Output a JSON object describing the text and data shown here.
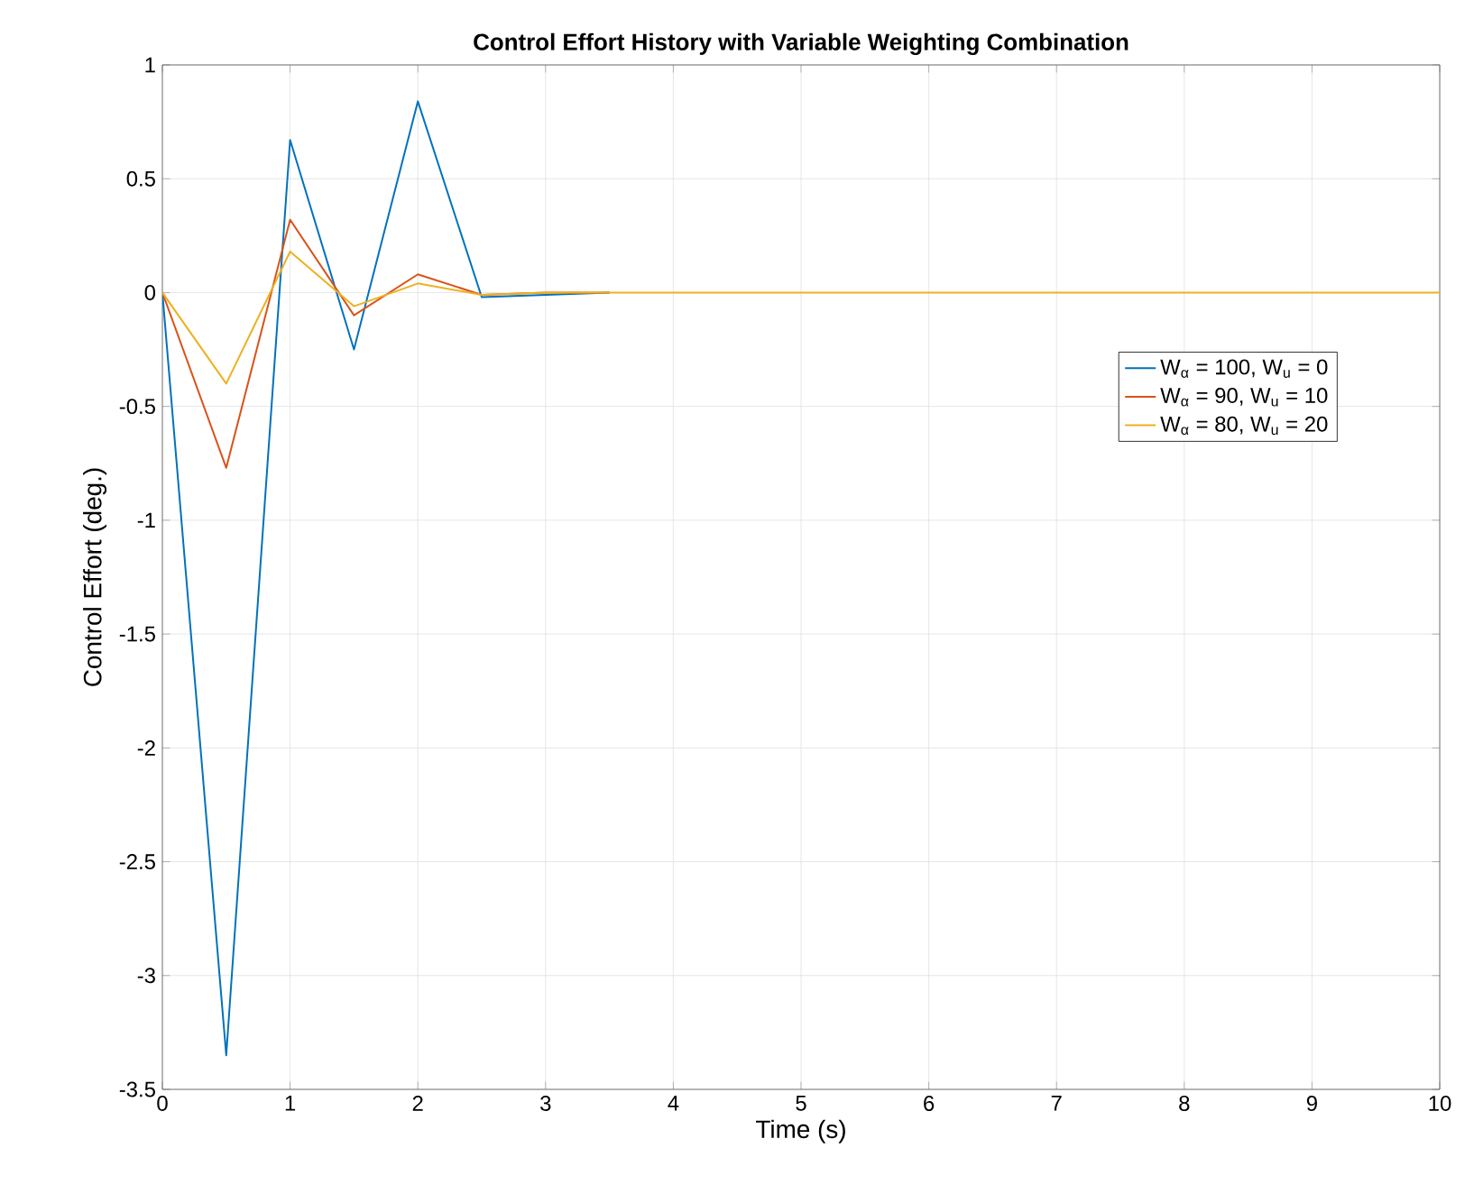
{
  "chart_data": {
    "type": "line",
    "title": "Control Effort History with Variable Weighting Combination",
    "xlabel": "Time (s)",
    "ylabel": "Control Effort (deg.)",
    "x": [
      0,
      0.5,
      1,
      1.5,
      2,
      2.5,
      3,
      3.5,
      4,
      4.5,
      5,
      5.5,
      6,
      6.5,
      7,
      7.5,
      8,
      8.5,
      9,
      9.5,
      10
    ],
    "series": [
      {
        "name": "W$_{α}$ = 100, W$_{u}$ = 0",
        "color": "#0072bd",
        "values": [
          0,
          -3.35,
          0.67,
          -0.25,
          0.84,
          -0.02,
          -0.01,
          0,
          null,
          null,
          null,
          null,
          null,
          null,
          null,
          null,
          null,
          null,
          null,
          null,
          null
        ]
      },
      {
        "name": "W$_{α}$ = 90, W$_{u}$ = 10",
        "color": "#d95319",
        "values": [
          0,
          -0.77,
          0.32,
          -0.1,
          0.08,
          -0.01,
          0,
          0,
          null,
          null,
          null,
          null,
          null,
          null,
          null,
          null,
          null,
          null,
          null,
          null,
          null
        ]
      },
      {
        "name": "W$_{α}$ = 80, W$_{u}$ = 20",
        "color": "#edb120",
        "values": [
          0,
          -0.4,
          0.18,
          -0.06,
          0.04,
          -0.01,
          0,
          0,
          0,
          0,
          0,
          0,
          0,
          0,
          0,
          0,
          0,
          0,
          0,
          0,
          0
        ]
      }
    ],
    "xlim": [
      0,
      10
    ],
    "xticks": [
      0,
      1,
      2,
      3,
      4,
      5,
      6,
      7,
      8,
      9,
      10
    ],
    "ylim": [
      -3.5,
      1
    ],
    "yticks": [
      -3.5,
      -3,
      -2.5,
      -2,
      -1.5,
      -1,
      -0.5,
      0,
      0.5,
      1
    ],
    "grid": true,
    "legend": "right",
    "marker": "none",
    "line_style": "solid"
  }
}
